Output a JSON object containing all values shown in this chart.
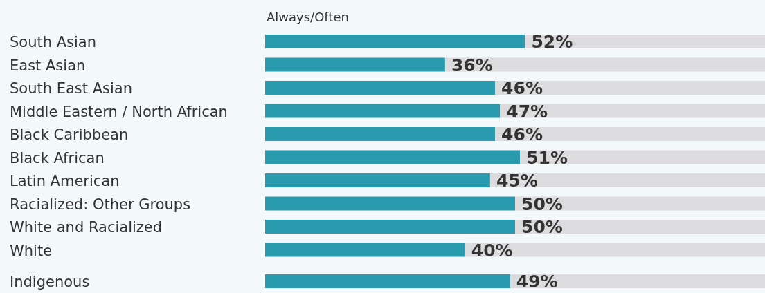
{
  "chart_data": {
    "type": "bar",
    "orientation": "horizontal",
    "stacked": true,
    "subtitle": "Always/Often",
    "categories": [
      "South Asian",
      "East Asian",
      "South East Asian",
      "Middle Eastern / North African",
      "Black Caribbean",
      "Black African",
      "Latin American",
      "Racialized: Other Groups",
      "White and Racialized",
      "White",
      "Indigenous"
    ],
    "xlim": [
      0,
      100
    ],
    "tick_labels": "y",
    "series": [
      {
        "color": "#2a9aae",
        "values": [
          52,
          36,
          46,
          47,
          46,
          51,
          45,
          50,
          50,
          40,
          49
        ],
        "value_labels": [
          "52%",
          "36%",
          "46%",
          "47%",
          "46%",
          "51%",
          "45%",
          "50%",
          "50%",
          "40%",
          "49%"
        ]
      },
      {
        "color": "#dcdcde",
        "values": [
          48,
          64,
          54,
          53,
          54,
          49,
          55,
          50,
          50,
          60,
          51
        ]
      }
    ]
  }
}
